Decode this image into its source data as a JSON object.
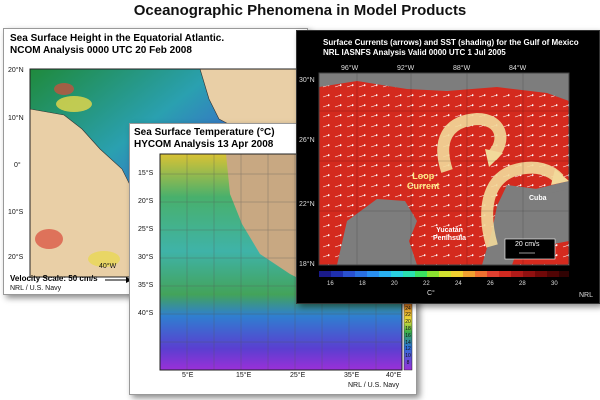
{
  "page": {
    "title": "Oceanographic Phenomena in Model Products"
  },
  "panel_ssh": {
    "title_line1": "Sea Surface Height in the Equatorial Atlantic.",
    "title_line2": "NCOM Analysis 0000 UTC 20 Feb 2008",
    "lat_labels": [
      "20°N",
      "10°N",
      "0°",
      "10°S",
      "20°S"
    ],
    "lon_label": "40°W",
    "velocity_scale": "Velocity Scale: 50 cm/s",
    "credit": "NRL / U.S. Navy"
  },
  "panel_sst": {
    "title_line1": "Sea Surface Temperature (°C)",
    "title_line2": "HYCOM Analysis 13 Apr 2008",
    "lat_labels": [
      "15°S",
      "20°S",
      "25°S",
      "30°S",
      "35°S",
      "40°S"
    ],
    "lon_labels": [
      "5°E",
      "15°E",
      "25°E",
      "35°E",
      "40°E"
    ],
    "colorbar_ticks": [
      "28",
      "26",
      "24",
      "22",
      "20",
      "18",
      "16",
      "14",
      "12",
      "10",
      "8"
    ],
    "colorbar_label": "SST (°C)",
    "credit": "NRL / U.S. Navy"
  },
  "panel_gom": {
    "title_line1": "Surface Currents (arrows) and SST (shading) for the Gulf of Mexico",
    "title_line2": "NRL IASNFS Analysis Valid 0000 UTC  1 Jul 2005",
    "lon_labels": [
      "96°W",
      "92°W",
      "88°W",
      "84°W"
    ],
    "lat_labels": [
      "30°N",
      "26°N",
      "22°N",
      "18°N"
    ],
    "loop_current_label_1": "Loop",
    "loop_current_label_2": "Current",
    "cuba_label": "Cuba",
    "yucatan_label_1": "Yucatán",
    "yucatan_label_2": "Peninsula",
    "scale_label": "20 cm/s",
    "colorbar_ticks": [
      "16",
      "18",
      "20",
      "22",
      "24",
      "26",
      "28",
      "30"
    ],
    "colorbar_unit": "C°",
    "credit": "NRL"
  }
}
